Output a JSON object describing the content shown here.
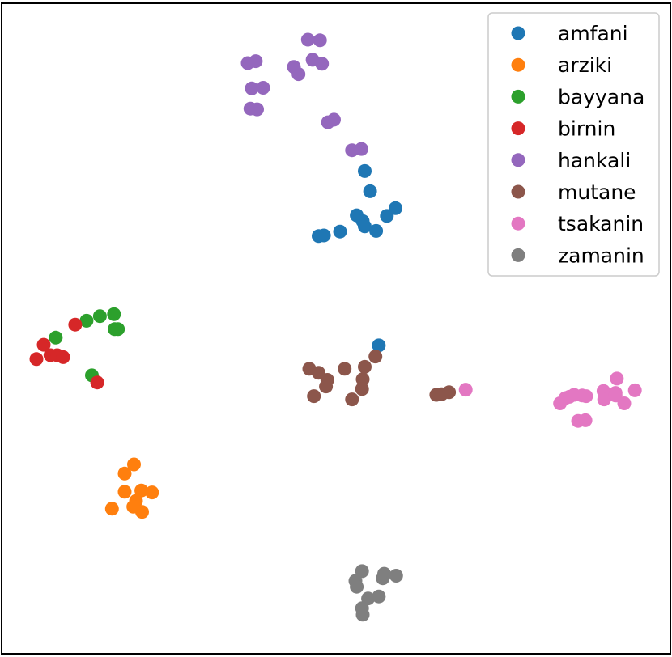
{
  "chart_data": {
    "type": "scatter",
    "title": "",
    "xlabel": "",
    "ylabel": "",
    "xlim": [
      0,
      100
    ],
    "ylim": [
      0,
      100
    ],
    "grid": false,
    "axis_ticks": false,
    "legend_position": "top-right",
    "series": [
      {
        "name": "amfani",
        "color": "#1f77b4",
        "points": [
          [
            54.3,
            74.2
          ],
          [
            55.1,
            71.1
          ],
          [
            58.9,
            68.5
          ],
          [
            57.6,
            67.3
          ],
          [
            53.1,
            67.4
          ],
          [
            54.0,
            66.5
          ],
          [
            54.3,
            65.7
          ],
          [
            56.0,
            65.0
          ],
          [
            50.6,
            64.9
          ],
          [
            48.2,
            64.3
          ],
          [
            47.4,
            64.2
          ],
          [
            56.4,
            47.4
          ]
        ]
      },
      {
        "name": "arziki",
        "color": "#ff7f0e",
        "points": [
          [
            19.8,
            29.1
          ],
          [
            18.4,
            27.7
          ],
          [
            18.4,
            24.9
          ],
          [
            20.9,
            25.1
          ],
          [
            22.5,
            24.8
          ],
          [
            20.1,
            23.5
          ],
          [
            19.7,
            22.6
          ],
          [
            16.5,
            22.3
          ],
          [
            21.0,
            21.8
          ]
        ]
      },
      {
        "name": "bayyana",
        "color": "#2ca02c",
        "points": [
          [
            16.8,
            52.2
          ],
          [
            14.7,
            51.9
          ],
          [
            12.7,
            51.2
          ],
          [
            16.9,
            49.9
          ],
          [
            17.4,
            49.9
          ],
          [
            8.1,
            48.6
          ],
          [
            13.5,
            42.8
          ]
        ]
      },
      {
        "name": "birnin",
        "color": "#d62728",
        "points": [
          [
            11.0,
            50.6
          ],
          [
            6.3,
            47.5
          ],
          [
            7.3,
            45.9
          ],
          [
            8.3,
            45.9
          ],
          [
            9.2,
            45.6
          ],
          [
            5.2,
            45.3
          ],
          [
            14.3,
            41.7
          ]
        ]
      },
      {
        "name": "hankali",
        "color": "#9467bd",
        "points": [
          [
            45.8,
            94.4
          ],
          [
            47.6,
            94.3
          ],
          [
            36.8,
            90.8
          ],
          [
            38.0,
            91.1
          ],
          [
            46.5,
            91.3
          ],
          [
            47.9,
            90.7
          ],
          [
            43.7,
            90.2
          ],
          [
            44.4,
            89.1
          ],
          [
            37.4,
            86.9
          ],
          [
            39.1,
            87.0
          ],
          [
            37.2,
            83.8
          ],
          [
            38.2,
            83.7
          ],
          [
            48.8,
            81.7
          ],
          [
            49.7,
            82.1
          ],
          [
            52.4,
            77.4
          ],
          [
            53.8,
            77.6
          ]
        ]
      },
      {
        "name": "mutane",
        "color": "#8c564b",
        "points": [
          [
            55.9,
            45.7
          ],
          [
            54.3,
            44.1
          ],
          [
            51.3,
            43.8
          ],
          [
            46.0,
            43.8
          ],
          [
            47.4,
            43.2
          ],
          [
            48.7,
            42.1
          ],
          [
            54.0,
            42.2
          ],
          [
            48.5,
            41.1
          ],
          [
            53.9,
            40.7
          ],
          [
            46.7,
            39.6
          ],
          [
            52.4,
            39.1
          ],
          [
            65.0,
            39.8
          ],
          [
            65.8,
            39.9
          ],
          [
            66.9,
            40.2
          ]
        ]
      },
      {
        "name": "tsakanin",
        "color": "#e377c2",
        "points": [
          [
            69.4,
            40.6
          ],
          [
            92.0,
            42.3
          ],
          [
            90.0,
            40.4
          ],
          [
            94.7,
            40.5
          ],
          [
            91.8,
            40.1
          ],
          [
            86.8,
            39.7
          ],
          [
            87.4,
            39.6
          ],
          [
            85.6,
            39.8
          ],
          [
            84.9,
            39.5
          ],
          [
            84.3,
            39.3
          ],
          [
            90.1,
            39.1
          ],
          [
            91.8,
            39.7
          ],
          [
            83.5,
            38.5
          ],
          [
            93.1,
            38.5
          ],
          [
            86.2,
            35.8
          ],
          [
            87.3,
            35.9
          ]
        ]
      },
      {
        "name": "zamanin",
        "color": "#7f7f7f",
        "points": [
          [
            53.9,
            12.7
          ],
          [
            57.2,
            12.3
          ],
          [
            59.0,
            12.0
          ],
          [
            57.0,
            11.6
          ],
          [
            52.9,
            11.2
          ],
          [
            53.1,
            10.3
          ],
          [
            56.4,
            8.8
          ],
          [
            54.8,
            8.5
          ],
          [
            53.9,
            7.0
          ],
          [
            54.0,
            6.0
          ]
        ]
      }
    ]
  }
}
